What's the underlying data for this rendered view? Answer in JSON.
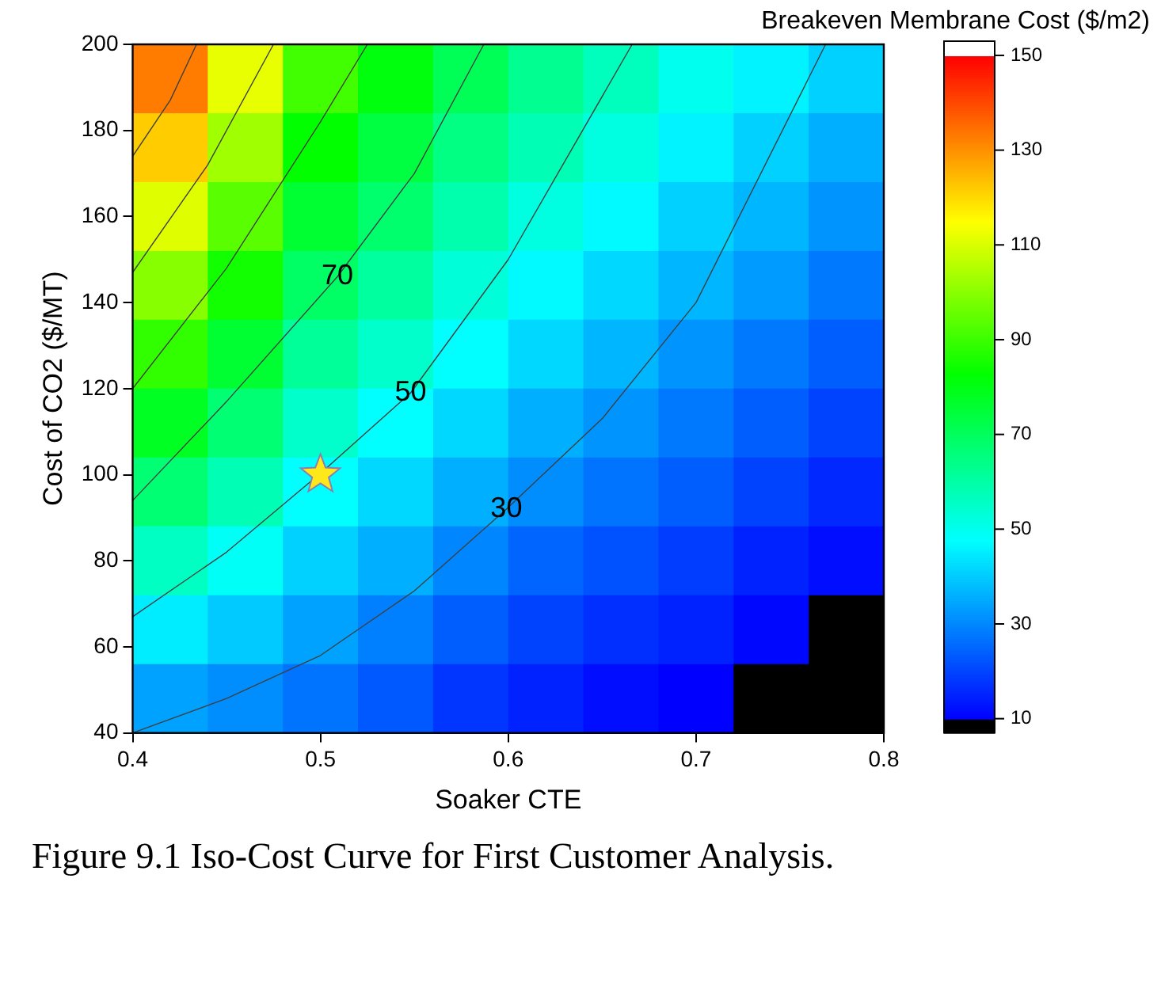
{
  "chart_data": {
    "type": "heatmap",
    "xlabel": "Soaker CTE",
    "ylabel": "Cost of CO2 ($/MT)",
    "clabel": "Breakeven Membrane Cost ($/m2)",
    "x": [
      0.42,
      0.46,
      0.5,
      0.54,
      0.58,
      0.62,
      0.66,
      0.7,
      0.74,
      0.78
    ],
    "y": [
      192,
      176,
      160,
      144,
      128,
      112,
      96,
      80,
      64,
      48
    ],
    "cells": [
      [
        133,
        112,
        91,
        81,
        71,
        63,
        57,
        50,
        46,
        41
      ],
      [
        122,
        103,
        83,
        74,
        65,
        58,
        52,
        46,
        41,
        36
      ],
      [
        111,
        94,
        76,
        68,
        59,
        52,
        47,
        41,
        37,
        32
      ],
      [
        100,
        85,
        69,
        61,
        53,
        47,
        42,
        37,
        33,
        28
      ],
      [
        89,
        76,
        62,
        55,
        48,
        42,
        37,
        32,
        28,
        24
      ],
      [
        78,
        67,
        55,
        48,
        42,
        36,
        32,
        28,
        24,
        20
      ],
      [
        67,
        58,
        48,
        42,
        36,
        31,
        27,
        24,
        20,
        16
      ],
      [
        56,
        49,
        41,
        36,
        30,
        25,
        22,
        19,
        15,
        12
      ],
      [
        45,
        40,
        34,
        29,
        24,
        20,
        17,
        15,
        11,
        8
      ],
      [
        34,
        31,
        27,
        23,
        18,
        15,
        12,
        10,
        7,
        4
      ]
    ],
    "xlim": [
      0.4,
      0.8
    ],
    "xticks": [
      0.4,
      0.5,
      0.6,
      0.7,
      0.8
    ],
    "ylim": [
      40,
      200
    ],
    "yticks": [
      40,
      60,
      80,
      100,
      120,
      140,
      160,
      180,
      200
    ],
    "clim": [
      7,
      153
    ],
    "cticks": [
      10,
      30,
      50,
      70,
      90,
      110,
      130,
      150
    ],
    "series": [
      {
        "type": "line",
        "color": "#404040",
        "x": [
          0.4,
          0.45,
          0.5,
          0.55,
          0.599,
          0.65,
          0.7,
          0.769
        ],
        "values": [
          40,
          48,
          58,
          73,
          92,
          113,
          140,
          200
        ]
      },
      {
        "type": "line",
        "color": "#404040",
        "x": [
          0.4,
          0.45,
          0.501,
          0.548,
          0.6,
          0.666
        ],
        "values": [
          67,
          82,
          100.7,
          119,
          150,
          200
        ]
      },
      {
        "type": "line",
        "color": "#404040",
        "x": [
          0.4,
          0.45,
          0.509,
          0.55,
          0.587
        ],
        "values": [
          94,
          117,
          146,
          170,
          200
        ]
      },
      {
        "type": "line",
        "color": "#404040",
        "x": [
          0.4,
          0.45,
          0.5,
          0.525
        ],
        "values": [
          120,
          148,
          182,
          200
        ]
      },
      {
        "type": "line",
        "color": "#404040",
        "x": [
          0.4,
          0.44,
          0.475
        ],
        "values": [
          147,
          172,
          200
        ]
      },
      {
        "type": "line",
        "color": "#404040",
        "x": [
          0.4,
          0.42,
          0.434
        ],
        "values": [
          174,
          187,
          200
        ]
      },
      {
        "type": "scatter",
        "marker": "star",
        "color": "#ffe81a",
        "x": [
          0.5
        ],
        "values": [
          100
        ]
      }
    ],
    "annotations": [
      {
        "text": "70",
        "x": 0.509,
        "y": 146
      },
      {
        "text": "50",
        "x": 0.548,
        "y": 119
      },
      {
        "text": "30",
        "x": 0.599,
        "y": 92
      },
      "Figure 9.1 Iso-Cost Curve for First Customer Analysis."
    ],
    "legend": false
  }
}
